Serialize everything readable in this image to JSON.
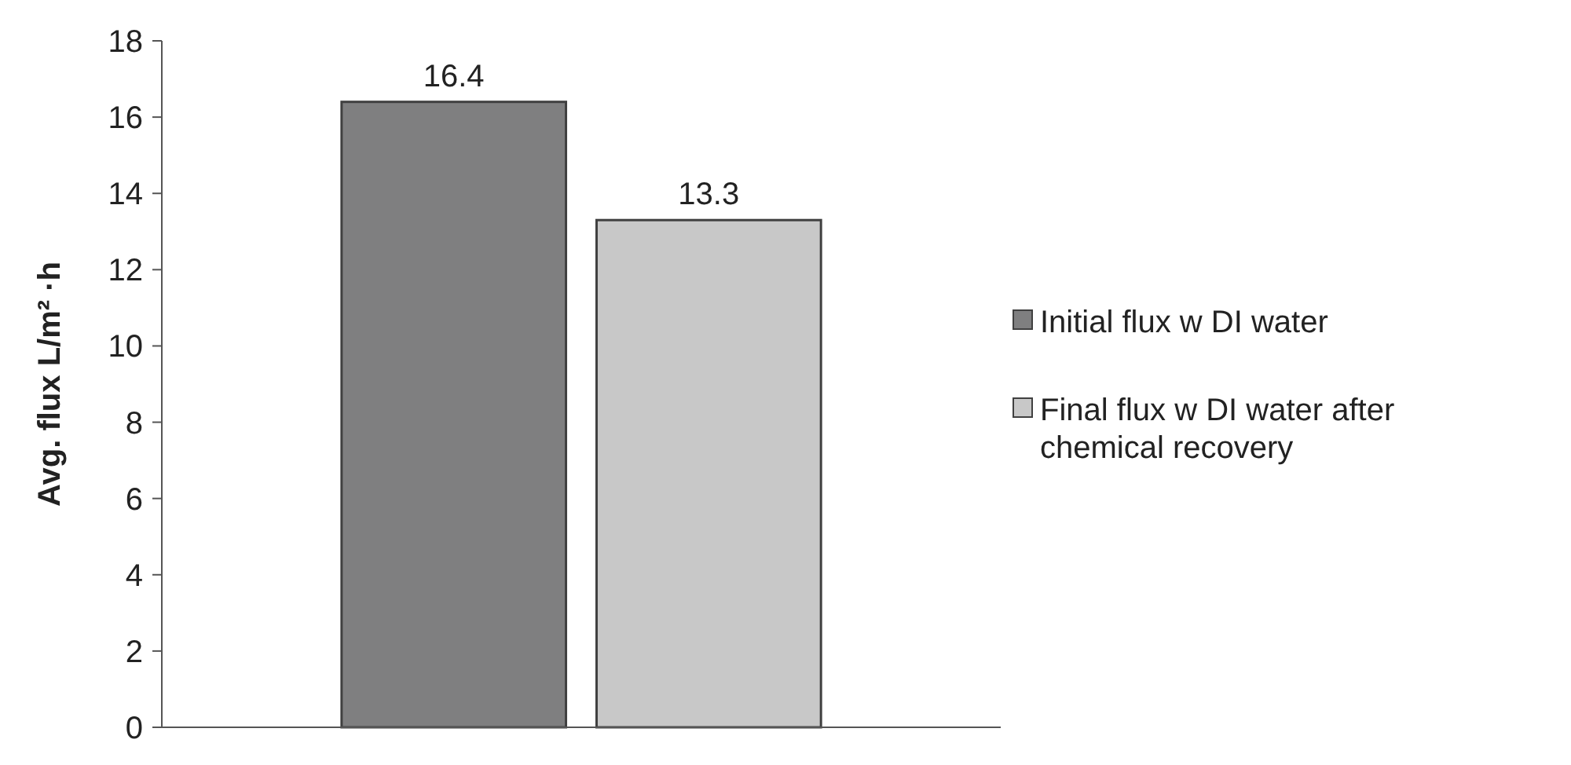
{
  "chart_data": {
    "type": "bar",
    "ylabel": "Avg. flux L/m² ·h",
    "categories": [
      null
    ],
    "series": [
      {
        "name": "Initial flux w DI water",
        "color": "#7f7f80",
        "values": [
          16.4
        ]
      },
      {
        "name": "Final flux w DI water after chemical recovery",
        "color": "#c8c8c8",
        "values": [
          13.3
        ]
      }
    ],
    "ylim": [
      0,
      18
    ],
    "yticks": [
      0,
      2,
      4,
      6,
      8,
      10,
      12,
      14,
      16,
      18
    ],
    "grid": false,
    "legend": "right",
    "data_labels": true
  }
}
